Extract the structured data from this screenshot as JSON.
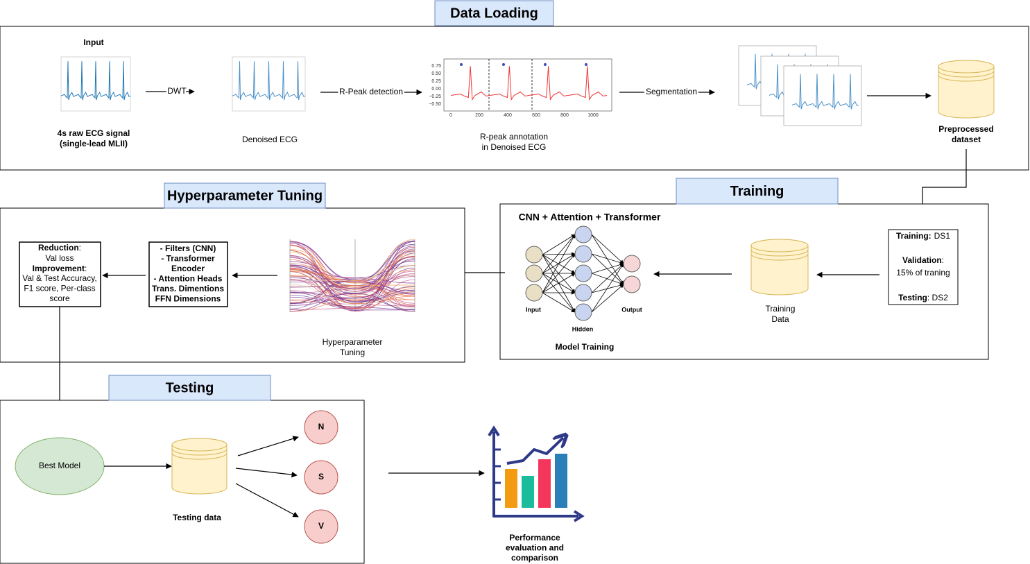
{
  "data_loading": {
    "title": "Data Loading",
    "input": "Input",
    "raw_signal": [
      "4s raw ECG signal",
      "(single-lead MLII)"
    ],
    "dwt": "DWT",
    "denoised": "Denoised ECG",
    "rpeak_detection": "R-Peak detection",
    "rpeak_plot": {
      "yticks": [
        "0.75",
        "0.50",
        "0.25",
        "0.00",
        "−0.25",
        "−0.50"
      ],
      "xticks": [
        "0",
        "200",
        "400",
        "600",
        "800",
        "1000"
      ]
    },
    "rpeak_annotation": [
      "R-peak annotation",
      "in Denoised ECG"
    ],
    "segmentation": "Segmentation",
    "preprocessed": [
      "Preprocessed",
      "dataset"
    ]
  },
  "training": {
    "title": "Training",
    "model": "CNN + Attention + Transformer",
    "layers": [
      "Input",
      "Hidden",
      "Output"
    ],
    "caption": "Model Training",
    "training_data": [
      "Training",
      "Data"
    ],
    "split": {
      "training_key": "Training:",
      "training_value": "DS1",
      "validation_key": "Validation",
      "validation_value": ":",
      "validation_detail": "15% of traning",
      "testing_key": "Testing",
      "testing_value": ": DS2"
    }
  },
  "hyperparameter_tuning": {
    "title": "Hyperparameter Tuning",
    "caption": [
      "Hyperparameter",
      "Tuning"
    ],
    "search_space": [
      "- Filters (CNN)",
      "- Transformer",
      "Encoder",
      "- Attention Heads",
      "Trans. Dimentions",
      "FFN Dimensions"
    ],
    "criteria": {
      "reduction_key": "Reduction",
      "reduction_colon": ":",
      "reduction_value": "Val loss",
      "improvement_key": "Improvement",
      "improvement_colon": ":",
      "improvement_lines": [
        "Val & Test Accuracy,",
        "F1 score, Per-class",
        "score"
      ]
    }
  },
  "testing": {
    "title": "Testing",
    "best_model": "Best Model",
    "testing_data": "Testing data",
    "classes": [
      "N",
      "S",
      "V"
    ],
    "performance": [
      "Performance",
      "evaluation and",
      "comparison"
    ]
  }
}
